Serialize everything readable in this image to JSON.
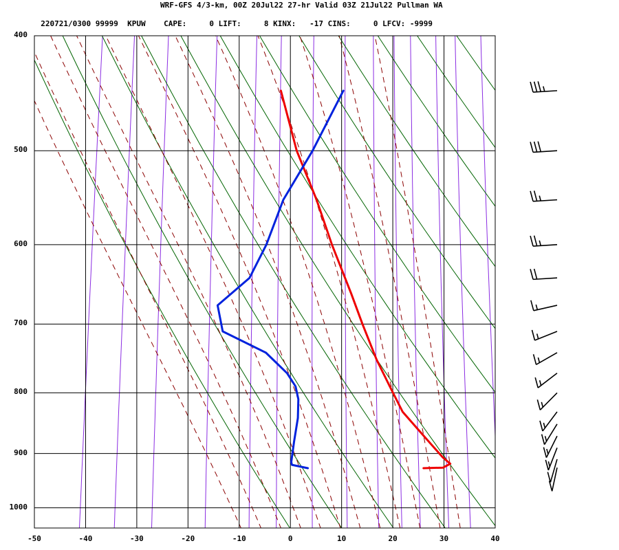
{
  "header": {
    "title": "WRF-GFS 4/3-km, 00Z 20Jul22 27-hr Valid 03Z 21Jul22 Pullman WA",
    "station_line": "220721/0300 99999  KPUW",
    "indices": [
      {
        "label": "CAPE:",
        "value": "0"
      },
      {
        "label": "LIFT:",
        "value": "8"
      },
      {
        "label": "KINX:",
        "value": "-17"
      },
      {
        "label": "CINS:",
        "value": "0"
      },
      {
        "label": "LFCV:",
        "value": "-9999"
      }
    ]
  },
  "colors": {
    "temperature": "#ee0000",
    "dewpoint": "#0022dd",
    "dry_adiabat": "#006400",
    "moist_adiabat": "#8b0000",
    "mixing_ratio": "#8a2be2",
    "grid": "#000000"
  },
  "chart_data": {
    "type": "line",
    "title": "",
    "xlabel": "",
    "ylabel": "",
    "x_scale": "skew-T temperature (°C)",
    "y_scale": "log pressure (hPa)",
    "xlim": [
      -50,
      40
    ],
    "ylim": [
      1040,
      400
    ],
    "x_ticks": [
      -50,
      -40,
      -30,
      -20,
      -10,
      0,
      10,
      20,
      30,
      40
    ],
    "x_tick_labels": [
      "-50",
      "-40",
      "-30",
      "-20",
      "-10",
      "0",
      "10",
      "20",
      "30",
      "40"
    ],
    "y_ticks": [
      400,
      500,
      600,
      700,
      800,
      900,
      1000
    ],
    "y_tick_labels": [
      "400",
      "500",
      "600",
      "700",
      "800",
      "900",
      "1000"
    ],
    "grid": true,
    "series": [
      {
        "role": "temperature",
        "points": [
          {
            "p": 926,
            "t": 24.4
          },
          {
            "p": 925,
            "t": 28.2
          },
          {
            "p": 918,
            "t": 29.5
          },
          {
            "p": 907,
            "t": 27.9
          },
          {
            "p": 870,
            "t": 23.6
          },
          {
            "p": 830,
            "t": 18.8
          },
          {
            "p": 790,
            "t": 15.6
          },
          {
            "p": 750,
            "t": 12.3
          },
          {
            "p": 700,
            "t": 8.6
          },
          {
            "p": 660,
            "t": 5.6
          },
          {
            "p": 600,
            "t": 0.5
          },
          {
            "p": 550,
            "t": -3.7
          },
          {
            "p": 500,
            "t": -8.9
          },
          {
            "p": 445,
            "t": -13.6
          }
        ]
      },
      {
        "role": "dewpoint",
        "points": [
          {
            "p": 926,
            "t": 1.8
          },
          {
            "p": 920,
            "t": -1.4
          },
          {
            "p": 915,
            "t": -1.6
          },
          {
            "p": 880,
            "t": -1.6
          },
          {
            "p": 840,
            "t": -1.5
          },
          {
            "p": 810,
            "t": -1.9
          },
          {
            "p": 790,
            "t": -2.8
          },
          {
            "p": 770,
            "t": -4.8
          },
          {
            "p": 740,
            "t": -9.5
          },
          {
            "p": 710,
            "t": -18.5
          },
          {
            "p": 675,
            "t": -20.2
          },
          {
            "p": 640,
            "t": -14.7
          },
          {
            "p": 600,
            "t": -12.3
          },
          {
            "p": 550,
            "t": -10.2
          },
          {
            "p": 500,
            "t": -5.8
          },
          {
            "p": 445,
            "t": -1.4
          }
        ]
      }
    ],
    "background_lines": {
      "dry_adiabats_K": [
        270,
        280,
        290,
        300,
        310,
        320,
        330,
        340,
        350,
        360,
        370,
        380,
        390,
        400
      ],
      "moist_adiabats_C": [
        -12,
        -8,
        -4,
        0,
        4,
        8,
        12,
        16,
        20,
        24,
        28,
        32
      ],
      "mixing_ratio_gkg": [
        0.1,
        0.2,
        0.4,
        1,
        2,
        3,
        5,
        8,
        12,
        16,
        20,
        28,
        36,
        50
      ]
    },
    "wind_barbs": [
      {
        "p": 445,
        "speed_kt": 35
      },
      {
        "p": 500,
        "speed_kt": 30
      },
      {
        "p": 550,
        "speed_kt": 25
      },
      {
        "p": 600,
        "speed_kt": 25
      },
      {
        "p": 640,
        "speed_kt": 20
      },
      {
        "p": 675,
        "speed_kt": 15
      },
      {
        "p": 710,
        "speed_kt": 15
      },
      {
        "p": 740,
        "speed_kt": 15
      },
      {
        "p": 770,
        "speed_kt": 15
      },
      {
        "p": 800,
        "speed_kt": 15
      },
      {
        "p": 830,
        "speed_kt": 15
      },
      {
        "p": 850,
        "speed_kt": 15
      },
      {
        "p": 870,
        "speed_kt": 15
      },
      {
        "p": 890,
        "speed_kt": 15
      },
      {
        "p": 910,
        "speed_kt": 10
      },
      {
        "p": 925,
        "speed_kt": 10
      }
    ]
  }
}
